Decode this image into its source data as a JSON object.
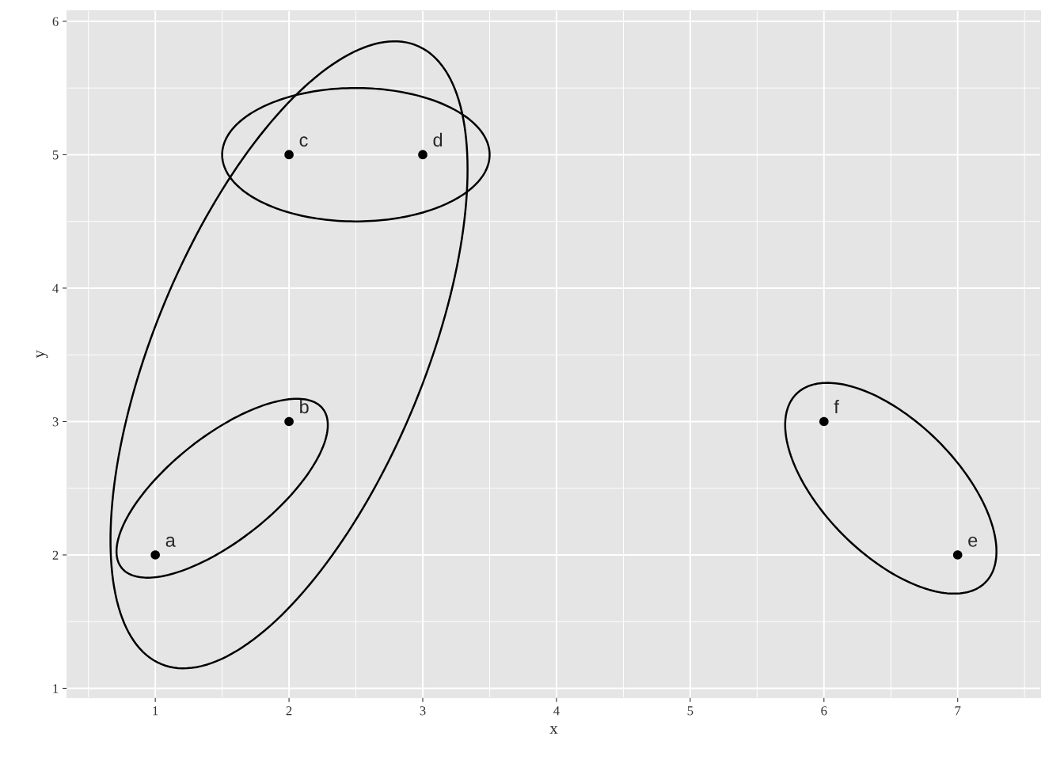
{
  "chart_data": {
    "type": "scatter",
    "xlabel": "x",
    "ylabel": "y",
    "x": [
      1,
      2,
      2,
      3,
      7,
      6
    ],
    "values": [
      2,
      3,
      5,
      5,
      2,
      3
    ],
    "color": "#000000",
    "marker": "circle",
    "annotations": [
      {
        "text": "a",
        "x": 1,
        "y": 2
      },
      {
        "text": "b",
        "x": 2,
        "y": 3
      },
      {
        "text": "c",
        "x": 2,
        "y": 5
      },
      {
        "text": "d",
        "x": 3,
        "y": 5
      },
      {
        "text": "e",
        "x": 7,
        "y": 2
      },
      {
        "text": "f",
        "x": 6,
        "y": 3
      }
    ],
    "xlim": [
      0.34,
      7.62
    ],
    "ylim": [
      0.93,
      6.08
    ],
    "xticks": [
      1,
      2,
      3,
      4,
      5,
      6,
      7
    ],
    "yticks": [
      1,
      2,
      3,
      4,
      5,
      6
    ],
    "grid": true
  }
}
